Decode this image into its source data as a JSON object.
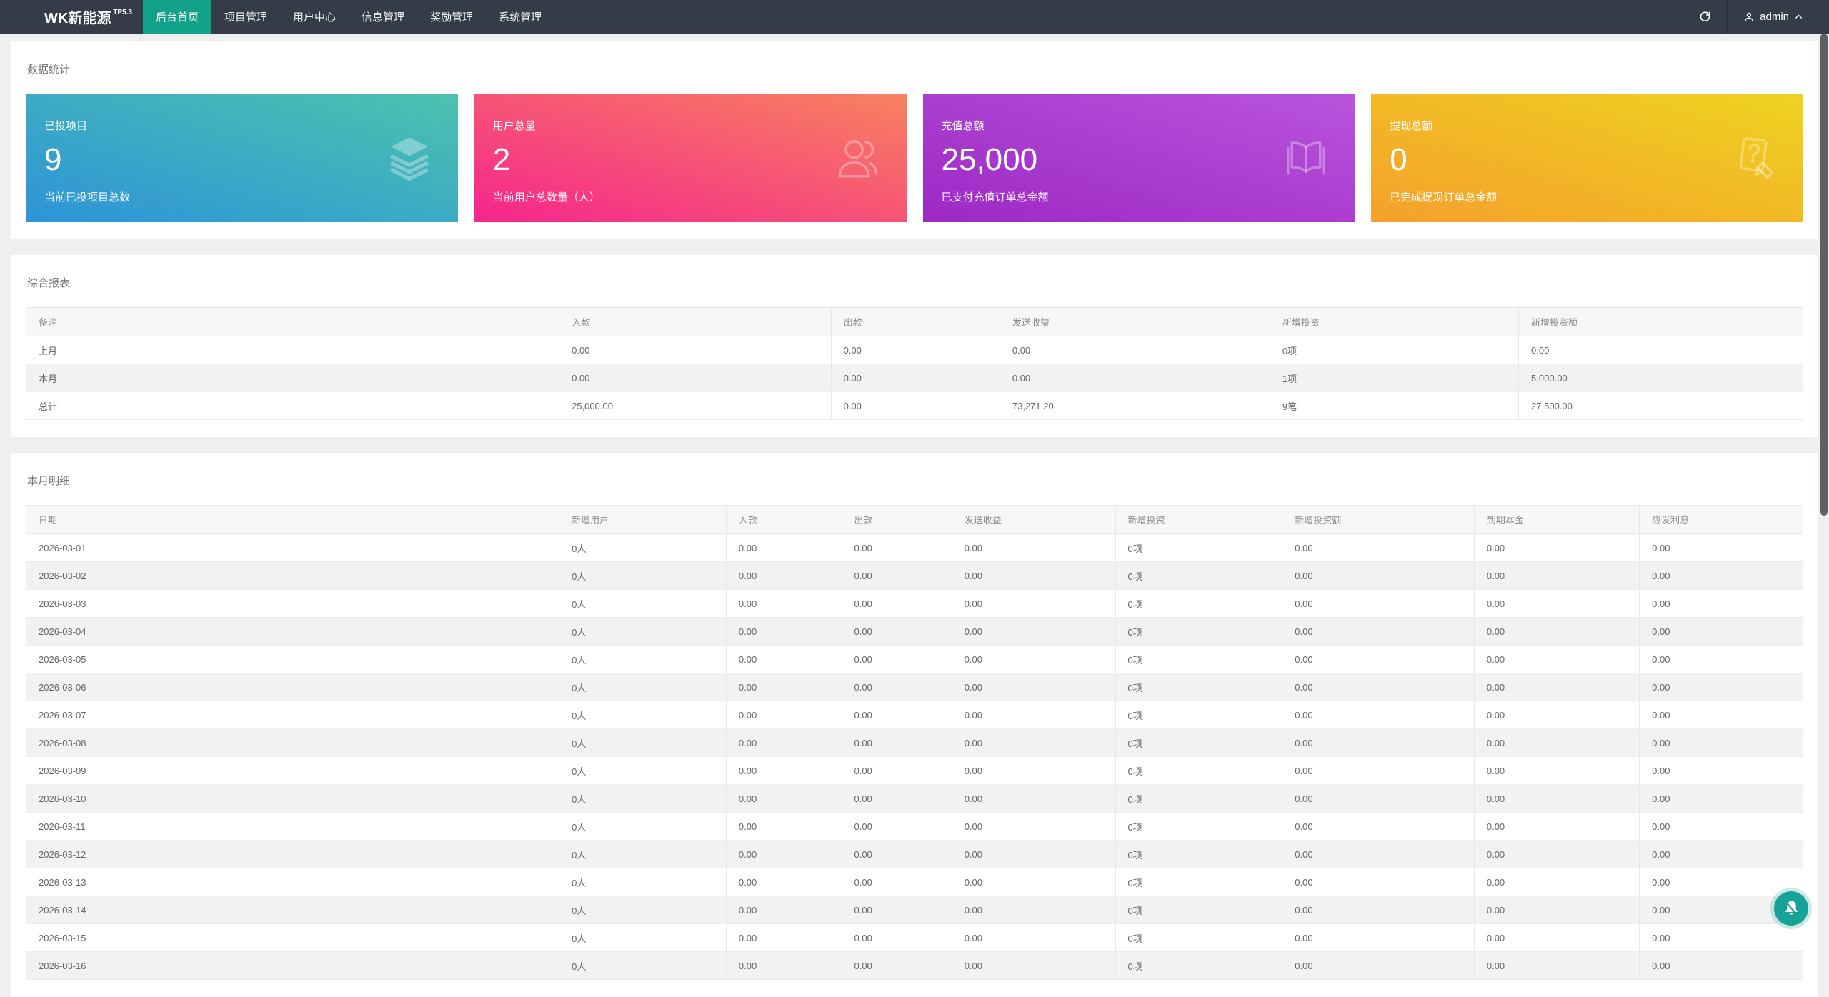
{
  "navbar": {
    "logo": "WK新能源",
    "logo_version": "TP5.3",
    "menu": [
      {
        "label": "后台首页",
        "active": true
      },
      {
        "label": "项目管理",
        "active": false
      },
      {
        "label": "用户中心",
        "active": false
      },
      {
        "label": "信息管理",
        "active": false
      },
      {
        "label": "奖励管理",
        "active": false
      },
      {
        "label": "系统管理",
        "active": false
      }
    ],
    "username": "admin"
  },
  "colors": {
    "navbar_bg": "#353b47",
    "menu_active": "#12a189",
    "page_bg": "#eef0f0",
    "fab": "#16a296"
  },
  "stats": {
    "title": "数据统计",
    "cards": [
      {
        "title": "已投项目",
        "value": "9",
        "subtitle": "当前已投项目总数",
        "icon": "layers-icon",
        "gradient_from": "#2e93d8",
        "gradient_to": "#4cc3ae"
      },
      {
        "title": "用户总量",
        "value": "2",
        "subtitle": "当前用户总数量（人）",
        "icon": "users-icon",
        "gradient_from": "#f5258d",
        "gradient_to": "#f8825f"
      },
      {
        "title": "充值总额",
        "value": "25,000",
        "subtitle": "已支付充值订单总金额",
        "icon": "book-icon",
        "gradient_from": "#9d28c4",
        "gradient_to": "#b954dc"
      },
      {
        "title": "提现总额",
        "value": "0",
        "subtitle": "已完成提现订单总金额",
        "icon": "document-edit-icon",
        "gradient_from": "#f5a02b",
        "gradient_to": "#eed321"
      }
    ]
  },
  "summary_report": {
    "title": "综合报表",
    "columns": [
      "备注",
      "入款",
      "出款",
      "发送收益",
      "新增投资",
      "新增投资额"
    ],
    "rows": [
      [
        "上月",
        "0.00",
        "0.00",
        "0.00",
        "0项",
        "0.00"
      ],
      [
        "本月",
        "0.00",
        "0.00",
        "0.00",
        "1项",
        "5,000.00"
      ],
      [
        "总计",
        "25,000.00",
        "0.00",
        "73,271.20",
        "9笔",
        "27,500.00"
      ]
    ]
  },
  "month_detail": {
    "title": "本月明细",
    "columns": [
      "日期",
      "新增用户",
      "入款",
      "出款",
      "发送收益",
      "新增投资",
      "新增投资额",
      "到期本金",
      "应发利息"
    ],
    "rows": [
      [
        "2026-03-01",
        "0人",
        "0.00",
        "0.00",
        "0.00",
        "0项",
        "0.00",
        "0.00",
        "0.00"
      ],
      [
        "2026-03-02",
        "0人",
        "0.00",
        "0.00",
        "0.00",
        "0项",
        "0.00",
        "0.00",
        "0.00"
      ],
      [
        "2026-03-03",
        "0人",
        "0.00",
        "0.00",
        "0.00",
        "0项",
        "0.00",
        "0.00",
        "0.00"
      ],
      [
        "2026-03-04",
        "0人",
        "0.00",
        "0.00",
        "0.00",
        "0项",
        "0.00",
        "0.00",
        "0.00"
      ],
      [
        "2026-03-05",
        "0人",
        "0.00",
        "0.00",
        "0.00",
        "0项",
        "0.00",
        "0.00",
        "0.00"
      ],
      [
        "2026-03-06",
        "0人",
        "0.00",
        "0.00",
        "0.00",
        "0项",
        "0.00",
        "0.00",
        "0.00"
      ],
      [
        "2026-03-07",
        "0人",
        "0.00",
        "0.00",
        "0.00",
        "0项",
        "0.00",
        "0.00",
        "0.00"
      ],
      [
        "2026-03-08",
        "0人",
        "0.00",
        "0.00",
        "0.00",
        "0项",
        "0.00",
        "0.00",
        "0.00"
      ],
      [
        "2026-03-09",
        "0人",
        "0.00",
        "0.00",
        "0.00",
        "0项",
        "0.00",
        "0.00",
        "0.00"
      ],
      [
        "2026-03-10",
        "0人",
        "0.00",
        "0.00",
        "0.00",
        "0项",
        "0.00",
        "0.00",
        "0.00"
      ],
      [
        "2026-03-11",
        "0人",
        "0.00",
        "0.00",
        "0.00",
        "0项",
        "0.00",
        "0.00",
        "0.00"
      ],
      [
        "2026-03-12",
        "0人",
        "0.00",
        "0.00",
        "0.00",
        "0项",
        "0.00",
        "0.00",
        "0.00"
      ],
      [
        "2026-03-13",
        "0人",
        "0.00",
        "0.00",
        "0.00",
        "0项",
        "0.00",
        "0.00",
        "0.00"
      ],
      [
        "2026-03-14",
        "0人",
        "0.00",
        "0.00",
        "0.00",
        "0项",
        "0.00",
        "0.00",
        "0.00"
      ],
      [
        "2026-03-15",
        "0人",
        "0.00",
        "0.00",
        "0.00",
        "0项",
        "0.00",
        "0.00",
        "0.00"
      ],
      [
        "2026-03-16",
        "0人",
        "0.00",
        "0.00",
        "0.00",
        "0项",
        "0.00",
        "0.00",
        "0.00"
      ]
    ]
  }
}
